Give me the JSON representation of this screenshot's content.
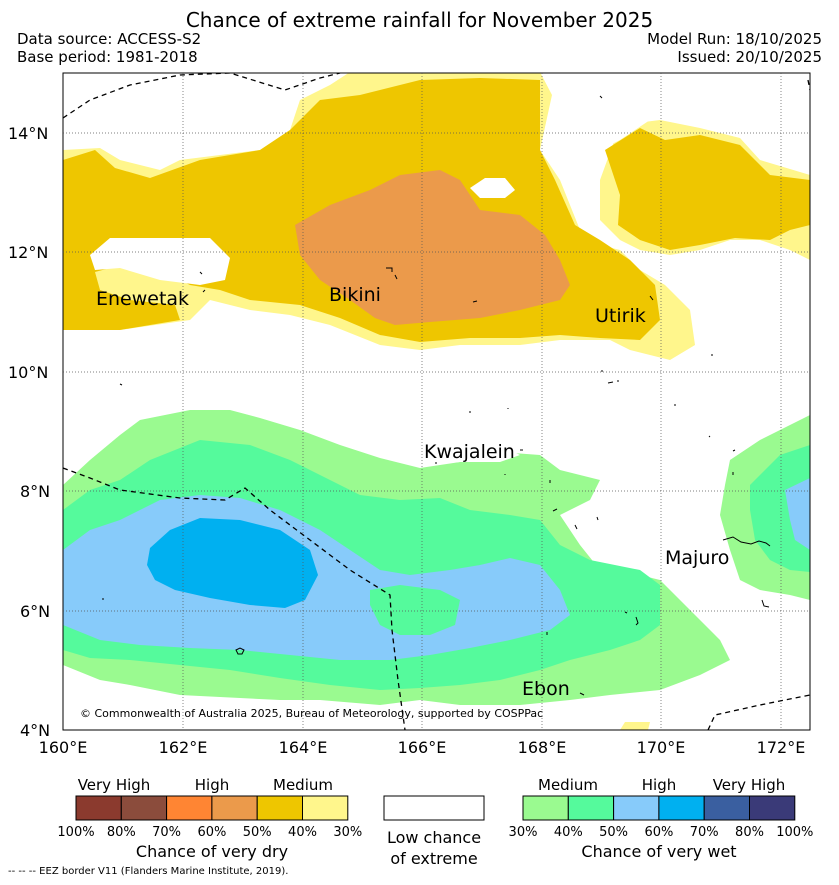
{
  "header": {
    "title": "Chance of extreme rainfall for November 2025",
    "data_source": "Data source: ACCESS-S2",
    "base_period": "Base period: 1981-2018",
    "model_run": "Model Run: 18/10/2025",
    "issued": "Issued: 20/10/2025"
  },
  "map": {
    "lat_labels": [
      "14°N",
      "12°N",
      "10°N",
      "8°N",
      "6°N",
      "4°N"
    ],
    "lon_labels": [
      "160°E",
      "162°E",
      "164°E",
      "166°E",
      "168°E",
      "170°E",
      "172°E"
    ],
    "places": {
      "enewetak": "Enewetak",
      "bikini": "Bikini",
      "utirik": "Utirik",
      "kwajalein": "Kwajalein",
      "majuro": "Majuro",
      "ebon": "Ebon"
    },
    "copyright": "© Commonwealth of Australia 2025, Bureau of Meteorology, supported by COSPPac"
  },
  "legend": {
    "dry": {
      "headers": [
        "Very High",
        "High",
        "Medium"
      ],
      "ticks": [
        "100%",
        "80%",
        "70%",
        "60%",
        "50%",
        "40%",
        "30%"
      ],
      "colors": [
        "#8b3a2e",
        "#8b4c3c",
        "#ff8533",
        "#eb9a4b",
        "#eec600",
        "#fff68c"
      ],
      "title": "Chance of very dry"
    },
    "low": {
      "line1": "Low chance",
      "line2": "of extreme"
    },
    "wet": {
      "headers": [
        "Medium",
        "High",
        "Very High"
      ],
      "ticks": [
        "30%",
        "40%",
        "50%",
        "60%",
        "70%",
        "80%",
        "100%"
      ],
      "colors": [
        "#9afa90",
        "#55fa9c",
        "#87cbfa",
        "#00b0f0",
        "#3a5fa0",
        "#3a3a78"
      ],
      "title": "Chance of very wet"
    },
    "eez_note": "--  --  -- EEZ border V11 (Flanders Marine Institute, 2019)."
  }
}
